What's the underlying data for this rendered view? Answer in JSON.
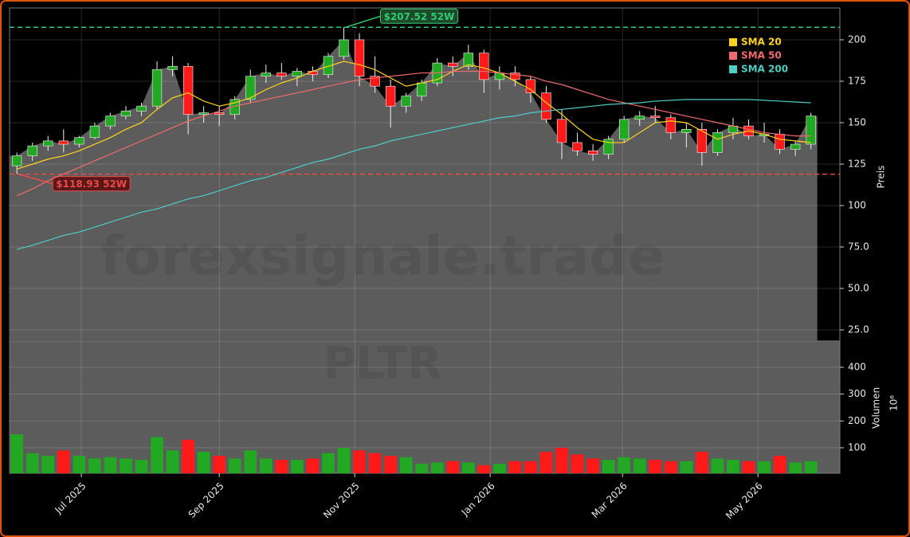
{
  "chart_data": {
    "type": "candlestick",
    "watermark": "forexsignale.trade",
    "symbol": "PLTR",
    "categories": [
      null,
      null,
      null,
      null,
      null,
      null,
      null,
      null,
      null,
      null,
      null,
      null,
      null,
      null,
      null,
      null,
      null,
      null,
      null,
      null,
      null,
      null,
      null,
      null,
      null,
      null,
      null,
      null,
      null,
      null,
      null,
      null,
      null,
      null,
      null,
      null,
      null,
      null,
      null,
      null,
      null,
      null,
      null,
      null,
      null,
      null,
      null,
      null,
      null,
      null,
      null,
      null
    ],
    "open": [
      124,
      130,
      136,
      139,
      137,
      141,
      148,
      154,
      157,
      160,
      182,
      184,
      155,
      156,
      155,
      164,
      178,
      180,
      178,
      181,
      179,
      190,
      200,
      178,
      172,
      160,
      166,
      174,
      186,
      184,
      192,
      176,
      180,
      176,
      168,
      152,
      138,
      133,
      131,
      140,
      152,
      154,
      153,
      144,
      146,
      132,
      144,
      148,
      142,
      143,
      134,
      137
    ],
    "high": [
      132,
      138,
      142,
      146,
      142,
      150,
      156,
      160,
      162,
      187,
      190,
      186,
      160,
      160,
      166,
      182,
      185,
      186,
      183,
      184,
      192,
      207.52,
      204,
      190,
      176,
      168,
      176,
      189,
      190,
      197,
      194,
      184,
      184,
      178,
      172,
      158,
      144,
      137,
      142,
      154,
      157,
      160,
      155,
      150,
      150,
      146,
      153,
      152,
      150,
      146,
      139,
      156
    ],
    "low": [
      118.93,
      127,
      133,
      132,
      135,
      140,
      146,
      152,
      154,
      158,
      178,
      143,
      150,
      148,
      152,
      162,
      174,
      176,
      172,
      175,
      177,
      188,
      172,
      168,
      147,
      156,
      163,
      172,
      178,
      182,
      168,
      170,
      172,
      162,
      150,
      128,
      130,
      127,
      128,
      138,
      148,
      150,
      140,
      135,
      124,
      130,
      140,
      140,
      138,
      131,
      130,
      134
    ],
    "close": [
      130,
      136,
      139,
      137,
      141,
      148,
      154,
      157,
      160,
      182,
      184,
      155,
      156,
      155,
      164,
      178,
      180,
      178,
      181,
      179,
      190,
      200,
      178,
      172,
      160,
      166,
      174,
      186,
      184,
      192,
      176,
      180,
      176,
      168,
      152,
      138,
      133,
      131,
      140,
      152,
      154,
      153,
      144,
      146,
      132,
      144,
      148,
      142,
      143,
      134,
      137,
      154
    ],
    "up_color": "#22a822",
    "down_color": "#ff1a1a",
    "area_color": "#5c5c5c",
    "series": [
      {
        "name": "SMA 20",
        "color": "#ffd21f",
        "values": [
          122,
          125,
          128,
          130,
          133,
          137,
          141,
          146,
          150,
          158,
          165,
          168,
          163,
          160,
          162,
          165,
          170,
          174,
          177,
          181,
          184,
          187,
          185,
          182,
          177,
          172,
          174,
          176,
          181,
          185,
          183,
          180,
          175,
          170,
          162,
          155,
          147,
          140,
          138,
          138,
          144,
          150,
          151,
          150,
          145,
          140,
          143,
          145,
          143,
          140,
          139,
          138
        ]
      },
      {
        "name": "SMA 50",
        "color": "#f06b6b",
        "values": [
          106,
          110,
          115,
          119,
          123,
          127,
          131,
          135,
          139,
          143,
          147,
          151,
          154,
          157,
          160,
          162,
          164,
          166,
          168,
          170,
          172,
          174,
          176,
          177,
          178,
          179,
          180,
          180,
          181,
          181,
          181,
          180,
          179,
          178,
          175,
          173,
          170,
          167,
          164,
          162,
          160,
          158,
          156,
          154,
          152,
          150,
          148,
          146,
          144,
          143,
          142,
          142
        ]
      },
      {
        "name": "SMA 200",
        "color": "#4ecdc4",
        "values": [
          73.6,
          76,
          79,
          82,
          84,
          87,
          90,
          93,
          96,
          98,
          101,
          104,
          106,
          109,
          112,
          115,
          117,
          120,
          123,
          126,
          128,
          131,
          134,
          136,
          139,
          141,
          143,
          145,
          147,
          149,
          151,
          153,
          154,
          156,
          157,
          158,
          159,
          160,
          161,
          161.5,
          162,
          163,
          163.5,
          164,
          164,
          164,
          164,
          164,
          163.5,
          163,
          162.5,
          162
        ]
      }
    ],
    "legend": "upper right",
    "annotations": [
      {
        "label": "$207.52 52W",
        "value": 207.52,
        "color": "#2ecc71"
      },
      {
        "label": "$118.93 52W",
        "value": 118.93,
        "color": "#e84a4a"
      }
    ],
    "ylabel": "Preis",
    "ylim": [
      18.3,
      219.2
    ],
    "yticks": [
      {
        "value": 25,
        "label": "25.0"
      },
      {
        "value": 50,
        "label": "50.0"
      },
      {
        "value": 75,
        "label": "75.0"
      },
      100,
      125,
      150,
      175,
      200
    ],
    "xlim": [
      -0.47,
      52.86
    ],
    "xticks": [
      {
        "value": 4.14,
        "label": "Jul 2025"
      },
      {
        "value": 13,
        "label": "Sep 2025"
      },
      {
        "value": 21.7,
        "label": "Nov 2025"
      },
      {
        "value": 30.4,
        "label": "Jan 2026"
      },
      {
        "value": 38.9,
        "label": "Mar 2026"
      },
      {
        "value": 47.6,
        "label": "May 2026"
      }
    ],
    "grid": true,
    "volume": {
      "ylabel": "Volumen",
      "exponent": "10⁶",
      "ylim": [
        5,
        498
      ],
      "yticks": [
        100,
        200,
        300,
        400
      ],
      "values": [
        150,
        80,
        70,
        90,
        70,
        60,
        65,
        60,
        55,
        140,
        90,
        130,
        85,
        70,
        60,
        90,
        60,
        55,
        55,
        60,
        80,
        100,
        90,
        80,
        70,
        65,
        40,
        45,
        50,
        45,
        35,
        40,
        50,
        50,
        85,
        100,
        75,
        60,
        55,
        65,
        60,
        55,
        50,
        50,
        85,
        60,
        55,
        50,
        50,
        70,
        45,
        50
      ]
    }
  }
}
